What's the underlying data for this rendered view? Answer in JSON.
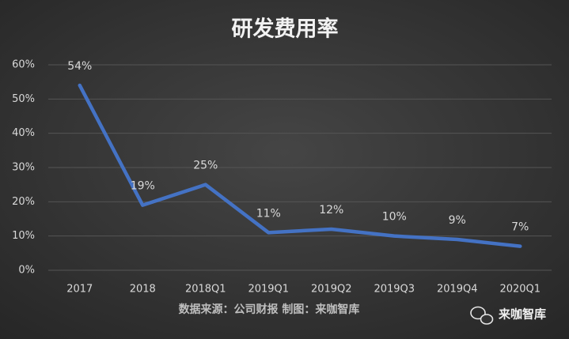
{
  "chart_data": {
    "type": "line",
    "title": "研发费用率",
    "categories": [
      "2017",
      "2018",
      "2018Q1",
      "2019Q1",
      "2019Q2",
      "2019Q3",
      "2019Q4",
      "2020Q1"
    ],
    "series": [
      {
        "name": "研发费用率",
        "color": "#4472c4",
        "values": [
          54,
          19,
          25,
          11,
          12,
          10,
          9,
          7
        ],
        "value_labels": [
          "54%",
          "19%",
          "25%",
          "11%",
          "12%",
          "10%",
          "9%",
          "7%"
        ]
      }
    ],
    "ylim": [
      0,
      60
    ],
    "yticks": [
      {
        "value": 0,
        "label": "0%"
      },
      {
        "value": 10,
        "label": "10%"
      },
      {
        "value": 20,
        "label": "20%"
      },
      {
        "value": 30,
        "label": "30%"
      },
      {
        "value": 40,
        "label": "40%"
      },
      {
        "value": 50,
        "label": "50%"
      },
      {
        "value": 60,
        "label": "60%"
      }
    ],
    "grid": true,
    "source": "数据来源：公司财报 制图：来咖智库",
    "watermark": "来咖智库"
  }
}
